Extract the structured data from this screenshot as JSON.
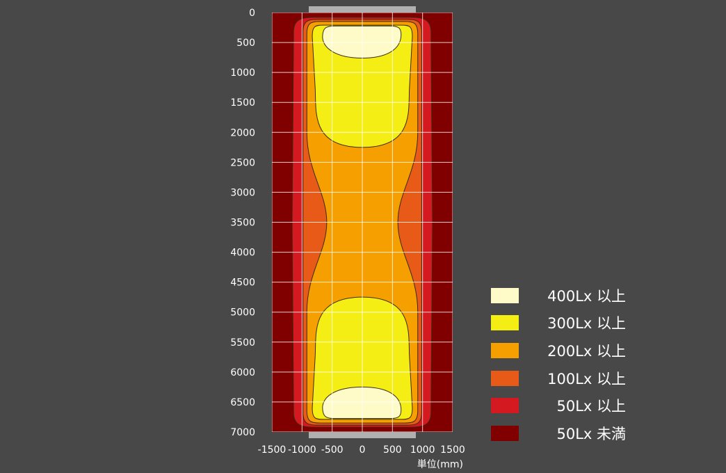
{
  "chart_data": {
    "type": "heatmap",
    "subtype": "illuminance-contour",
    "xlim": [
      -1500,
      1500
    ],
    "ylim": [
      0,
      7000
    ],
    "y_inverted": true,
    "grid": true,
    "x_ticks": [
      "-1500",
      "-1000",
      "-500",
      "0",
      "500",
      "1000",
      "1500"
    ],
    "y_ticks": [
      "0",
      "500",
      "1000",
      "1500",
      "2000",
      "2500",
      "3000",
      "3500",
      "4000",
      "4500",
      "5000",
      "5500",
      "6000",
      "6500",
      "7000"
    ],
    "unit_label": "単位(mm)",
    "legend_placement": "right",
    "levels": [
      {
        "label": "400Lx 以上",
        "color": "#fffbc8"
      },
      {
        "label": "300Lx 以上",
        "color": "#f5ee14"
      },
      {
        "label": "200Lx 以上",
        "color": "#f5a000"
      },
      {
        "label": "100Lx 以上",
        "color": "#e85a18"
      },
      {
        "label": "50Lx 以上",
        "color": "#d41a20"
      },
      {
        "label": "50Lx 未満",
        "color": "#800000"
      }
    ]
  }
}
